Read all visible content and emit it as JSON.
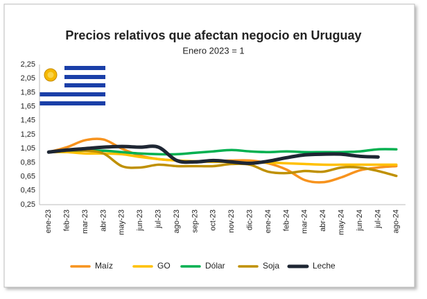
{
  "chart_data": {
    "type": "line",
    "title": "Precios relativos que afectan negocio en Uruguay",
    "subtitle": "Enero 2023 = 1",
    "categories": [
      "ene-23",
      "feb-23",
      "mar-23",
      "abr-23",
      "may-23",
      "jun-23",
      "jul-23",
      "ago-23",
      "sep-23",
      "oct-23",
      "nov-23",
      "dic-23",
      "ene-24",
      "feb-24",
      "mar-24",
      "abr-24",
      "may-24",
      "jun-24",
      "jul-24",
      "ago-24"
    ],
    "series": [
      {
        "name": "Maíz",
        "color": "#f7931e",
        "values": [
          1.0,
          1.07,
          1.17,
          1.18,
          1.05,
          0.95,
          0.9,
          0.88,
          0.86,
          0.87,
          0.88,
          0.88,
          0.84,
          0.75,
          0.6,
          0.57,
          0.64,
          0.74,
          0.78,
          0.8
        ]
      },
      {
        "name": "GO",
        "color": "#ffc000",
        "values": [
          1.0,
          1.0,
          0.98,
          0.98,
          0.97,
          0.93,
          0.9,
          0.88,
          0.87,
          0.86,
          0.86,
          0.85,
          0.85,
          0.84,
          0.83,
          0.82,
          0.82,
          0.82,
          0.82,
          0.82
        ]
      },
      {
        "name": "Dólar",
        "color": "#00b050",
        "values": [
          1.0,
          1.02,
          1.02,
          1.02,
          1.0,
          0.98,
          0.97,
          0.97,
          0.99,
          1.01,
          1.03,
          1.01,
          1.0,
          1.01,
          1.0,
          1.0,
          1.0,
          1.01,
          1.04,
          1.04
        ]
      },
      {
        "name": "Soja",
        "color": "#bf9000",
        "values": [
          1.0,
          1.02,
          1.02,
          0.98,
          0.8,
          0.78,
          0.82,
          0.8,
          0.8,
          0.8,
          0.83,
          0.82,
          0.72,
          0.7,
          0.73,
          0.72,
          0.78,
          0.78,
          0.73,
          0.66
        ]
      },
      {
        "name": "Leche",
        "color": "#1e2633",
        "values": [
          1.0,
          1.03,
          1.05,
          1.07,
          1.08,
          1.07,
          1.07,
          0.88,
          0.86,
          0.88,
          0.86,
          0.84,
          0.87,
          0.92,
          0.96,
          0.97,
          0.97,
          0.94,
          0.93,
          null
        ]
      }
    ],
    "ylim": [
      0.25,
      2.25
    ],
    "yticks": [
      {
        "value": 0.25,
        "label": "0,25"
      },
      {
        "value": 0.45,
        "label": "0,45"
      },
      {
        "value": 0.65,
        "label": "0,65"
      },
      {
        "value": 0.85,
        "label": "0,85"
      },
      {
        "value": 1.05,
        "label": "1,05"
      },
      {
        "value": 1.25,
        "label": "1,25"
      },
      {
        "value": 1.45,
        "label": "1,45"
      },
      {
        "value": 1.65,
        "label": "1,65"
      },
      {
        "value": 1.85,
        "label": "1,85"
      },
      {
        "value": 2.05,
        "label": "2,05"
      },
      {
        "value": 2.25,
        "label": "2,25"
      }
    ],
    "grid": false,
    "legend": "bottom"
  }
}
